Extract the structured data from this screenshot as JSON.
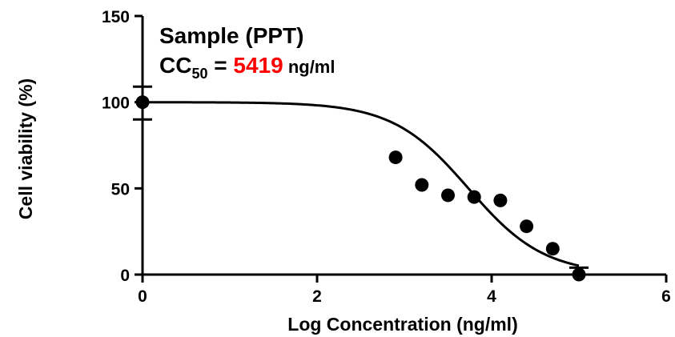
{
  "chart_data": {
    "type": "scatter",
    "xlabel": "Log Concentration (ng/ml)",
    "ylabel": "Cell viability (%)",
    "xlim": [
      0,
      6
    ],
    "ylim": [
      0,
      150
    ],
    "x_ticks": [
      0,
      2,
      4,
      6
    ],
    "y_ticks": [
      0,
      50,
      100,
      150
    ],
    "x_tick_labels": [
      "0",
      "2",
      "4",
      "6"
    ],
    "y_tick_labels": [
      "0",
      "50",
      "100",
      "150"
    ],
    "grid": false,
    "annotation": {
      "title": "Sample (PPT)",
      "cc_label": "CC",
      "cc_subscript": "50",
      "cc_equals": " = ",
      "cc_value": "5419",
      "cc_unit": " ng/ml",
      "cc_value_color": "#ff0000"
    },
    "points": {
      "x": [
        0,
        2.9,
        3.2,
        3.5,
        3.8,
        4.1,
        4.4,
        4.7,
        5.0
      ],
      "y": [
        100,
        68,
        52,
        46,
        45,
        43,
        28,
        15,
        0
      ]
    },
    "error_bars": [
      {
        "x": 0,
        "y": 100,
        "low": 90,
        "high": 109
      },
      {
        "x": 5.0,
        "y": 0,
        "low": 0,
        "high": 4
      }
    ],
    "fit_curve": {
      "model": "four-parameter logistic",
      "top": 100,
      "bottom": 0,
      "log_cc50": 3.734,
      "hill_slope": -1,
      "x_range": [
        0,
        5.0
      ]
    }
  }
}
